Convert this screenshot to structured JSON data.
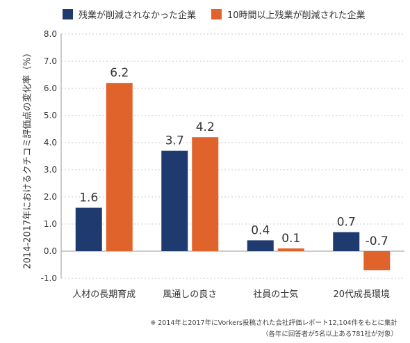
{
  "chart_data": {
    "type": "bar",
    "ylabel": "2014-2017年におけるクチコミ評価点の変化率（%）",
    "ylim": [
      -1.0,
      8.0
    ],
    "yticks": [
      "8.0",
      "7.0",
      "6.0",
      "5.0",
      "4.0",
      "3.0",
      "2.0",
      "1.0",
      "0.0",
      "-1.0"
    ],
    "ytick_values": [
      8,
      7,
      6,
      5,
      4,
      3,
      2,
      1,
      0,
      -1
    ],
    "grid": true,
    "legend_position": "top",
    "categories": [
      "人材の長期育成",
      "風通しの良さ",
      "社員の士気",
      "20代成長環境"
    ],
    "series": [
      {
        "name": "残業が削減されなかった企業",
        "color": "#1f3a6e",
        "values": [
          1.6,
          3.7,
          0.4,
          0.7
        ],
        "labels": [
          "1.6",
          "3.7",
          "0.4",
          "0.7"
        ]
      },
      {
        "name": "10時間以上残業が削減された企業",
        "color": "#e0632c",
        "values": [
          6.2,
          4.2,
          0.1,
          -0.7
        ],
        "labels": [
          "6.2",
          "4.2",
          "0.1",
          "-0.7"
        ]
      }
    ]
  },
  "footnote": {
    "line1": "※ 2014年と2017年にVorkers投稿された会社評価レポート12,104件をもとに集計",
    "line2": "（各年に回答者が5名以上ある781社が対象）"
  }
}
